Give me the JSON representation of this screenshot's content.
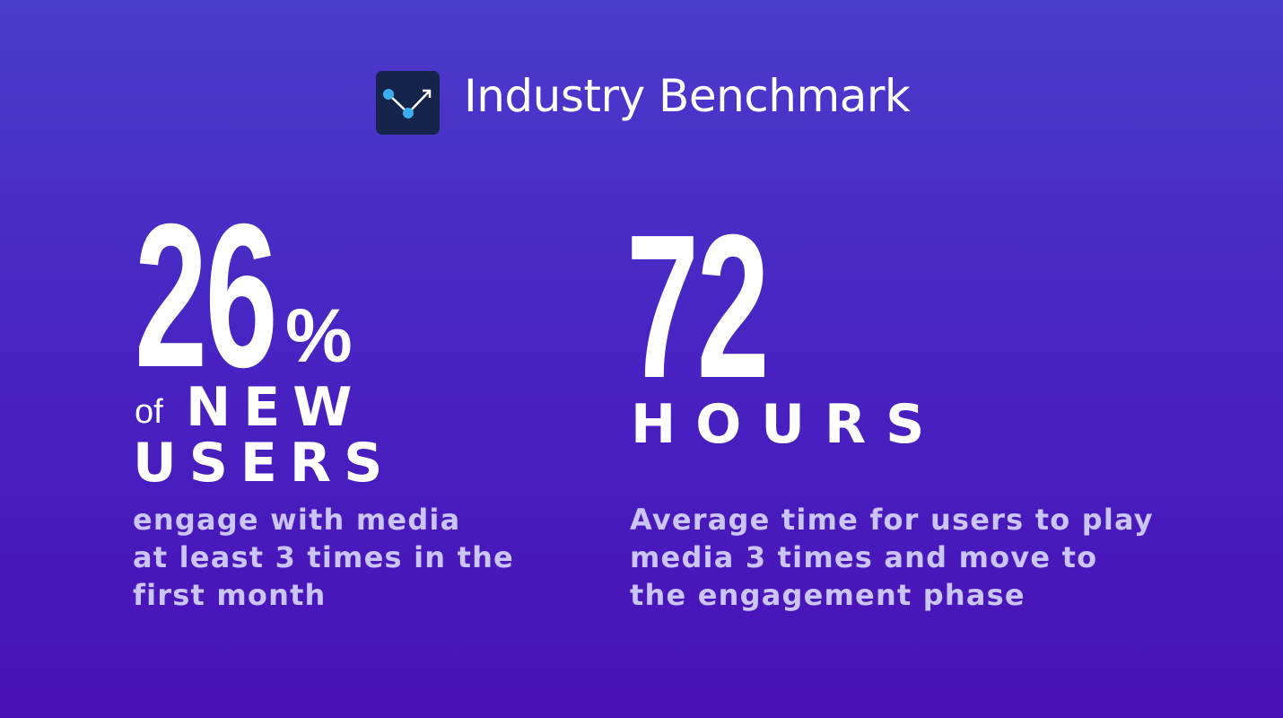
{
  "header": {
    "title": "Industry Benchmark"
  },
  "stats": [
    {
      "value": 26,
      "unit": "%",
      "prefix": "of",
      "label_lines": [
        "NEW",
        "USERS"
      ],
      "description_lines": [
        "engage with media",
        "at least 3 times in the",
        "first month"
      ]
    },
    {
      "value": 72,
      "label_lines": [
        "HOURS"
      ],
      "description_lines": [
        "Average time for users to play",
        "media 3 times and move to",
        "the engagement phase"
      ]
    }
  ]
}
